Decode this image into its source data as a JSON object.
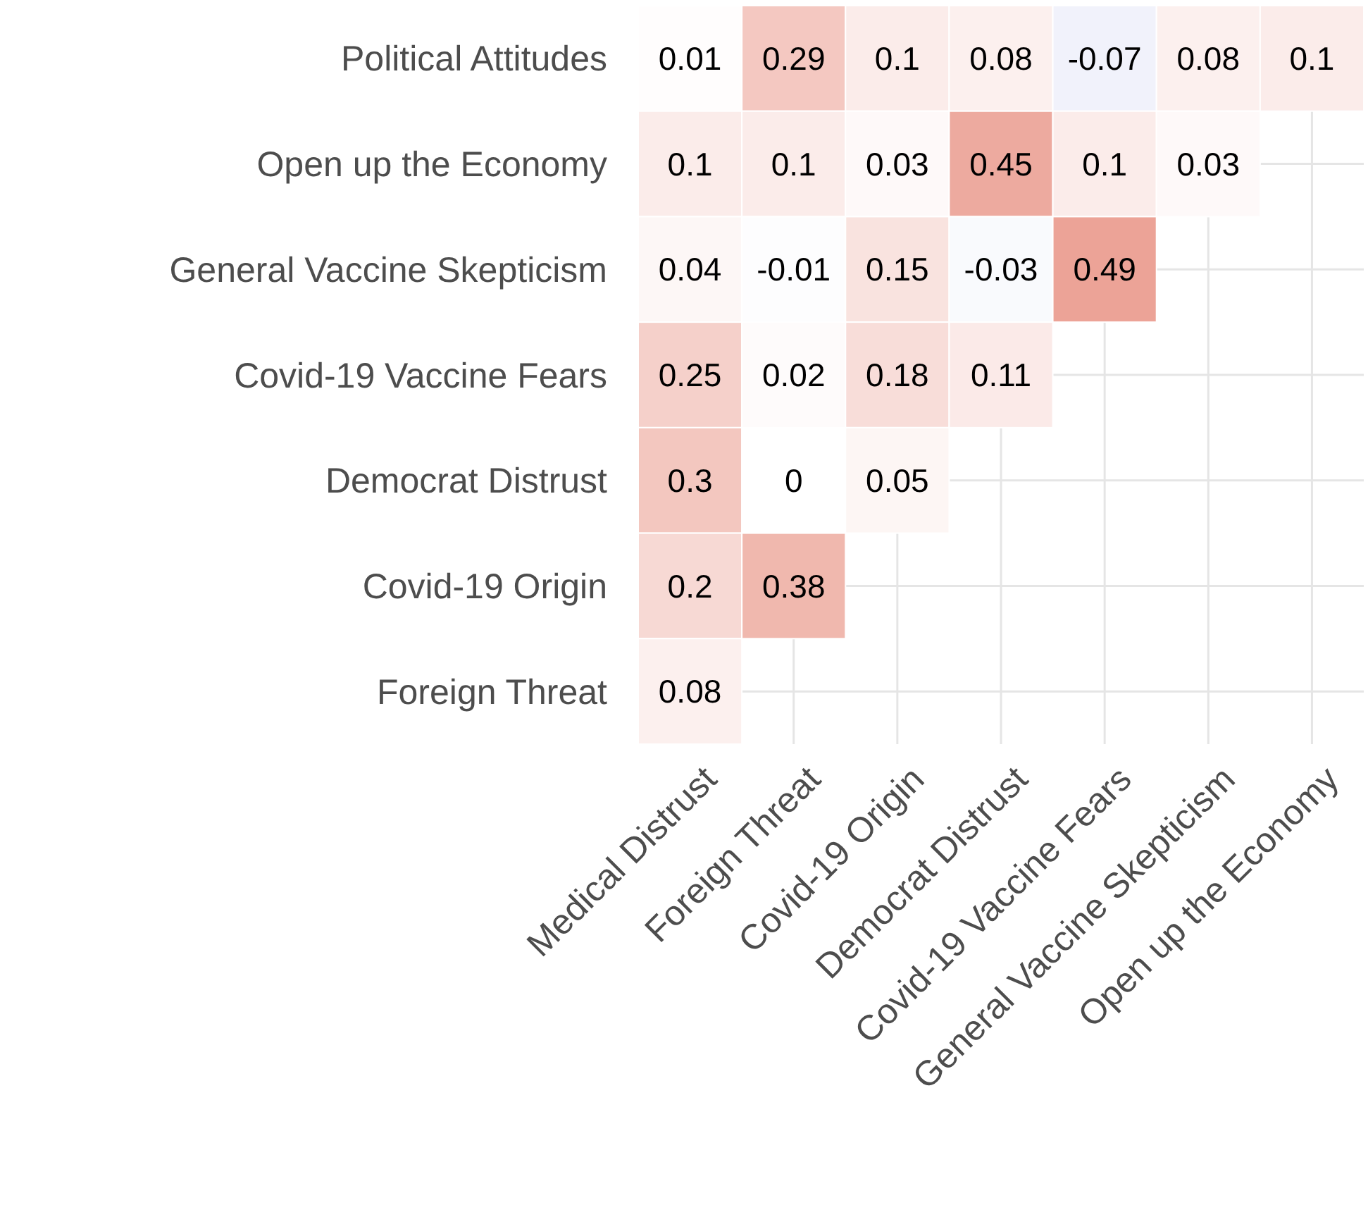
{
  "chart_data": {
    "type": "heatmap",
    "grid": true,
    "data_labels": true,
    "categories": [
      "Medical Distrust",
      "Foreign Threat",
      "Covid-19 Origin",
      "Democrat Distrust",
      "Covid-19 Vaccine Fears",
      "General Vaccine Skepticism",
      "Open up the Economy"
    ],
    "y_categories": [
      "Political Attitudes",
      "Open up the Economy",
      "General Vaccine Skepticism",
      "Covid-19 Vaccine Fears",
      "Democrat Distrust",
      "Covid-19 Origin",
      "Foreign Threat"
    ],
    "cells": [
      [
        0.01,
        0.29,
        0.1,
        0.08,
        -0.07,
        0.08,
        0.1
      ],
      [
        0.1,
        0.1,
        0.03,
        0.45,
        0.1,
        0.03,
        null
      ],
      [
        0.04,
        -0.01,
        0.15,
        -0.03,
        0.49,
        null,
        null
      ],
      [
        0.25,
        0.02,
        0.18,
        0.11,
        null,
        null,
        null
      ],
      [
        0.3,
        0,
        0.05,
        null,
        null,
        null,
        null
      ],
      [
        0.2,
        0.38,
        null,
        null,
        null,
        null,
        null
      ],
      [
        0.08,
        null,
        null,
        null,
        null,
        null,
        null
      ]
    ]
  }
}
